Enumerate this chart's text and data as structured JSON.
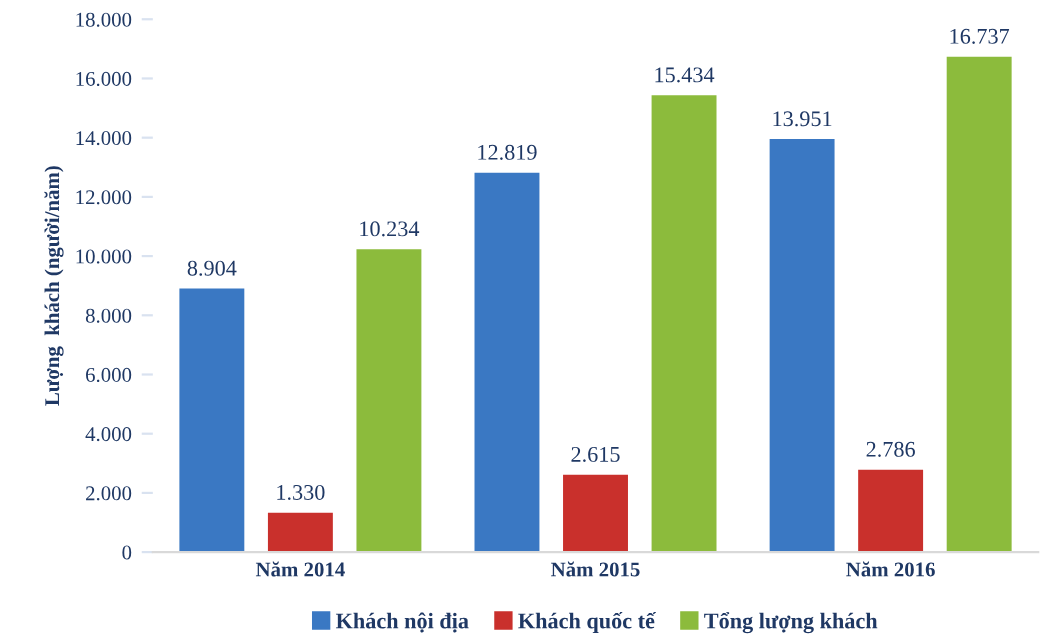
{
  "chart_data": {
    "type": "bar",
    "ylabel": "Lượng  khách (người/năm)",
    "categories": [
      "Năm 2014",
      "Năm 2015",
      "Năm 2016"
    ],
    "series": [
      {
        "name": "Khách nội địa",
        "color": "#3a78c3",
        "values": [
          8904,
          12819,
          13951
        ],
        "value_labels": [
          "8.904",
          "12.819",
          "13.951"
        ]
      },
      {
        "name": "Khách quốc tế",
        "color": "#c9302c",
        "values": [
          1330,
          2615,
          2786
        ],
        "value_labels": [
          "1.330",
          "2.615",
          "2.786"
        ]
      },
      {
        "name": "Tổng lượng khách",
        "color": "#8cbb3c",
        "values": [
          10234,
          15434,
          16737
        ],
        "value_labels": [
          "10.234",
          "15.434",
          "16.737"
        ]
      }
    ],
    "ylim": [
      0,
      18000
    ],
    "yticks": [
      0,
      {
        "value": 2000,
        "label": "2.000"
      },
      {
        "value": 4000,
        "label": "4.000"
      },
      {
        "value": 6000,
        "label": "6.000"
      },
      {
        "value": 8000,
        "label": "8.000"
      },
      {
        "value": 10000,
        "label": "10.000"
      },
      {
        "value": 12000,
        "label": "12.000"
      },
      {
        "value": 14000,
        "label": "14.000"
      },
      {
        "value": 16000,
        "label": "16.000"
      },
      {
        "value": 18000,
        "label": "18.000"
      }
    ],
    "grid": false,
    "legend": "bottom"
  }
}
